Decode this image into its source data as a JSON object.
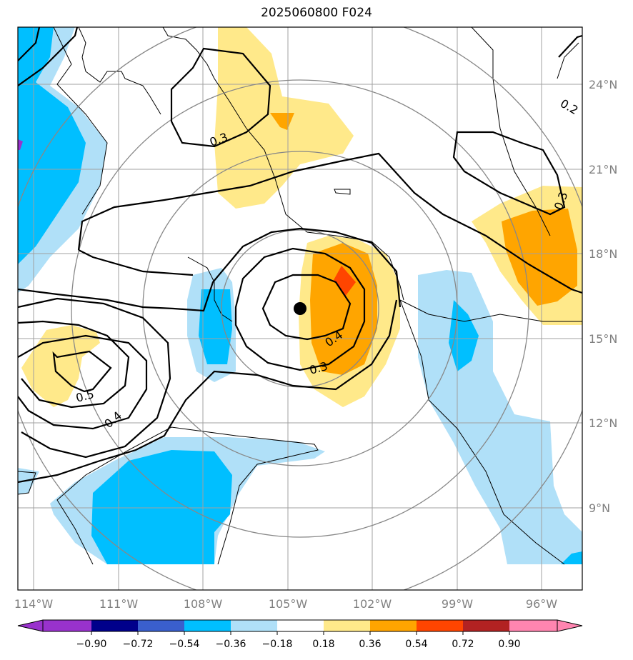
{
  "map": {
    "title": "2025060800 F024",
    "lon_labels": [
      "114°W",
      "111°W",
      "108°W",
      "105°W",
      "102°W",
      "99°W",
      "96°W"
    ],
    "lat_labels": [
      "24°N",
      "21°N",
      "18°N",
      "15°N",
      "12°N",
      "9°N"
    ],
    "contour_labels": [
      "0.3",
      "0.2",
      "0.3",
      "0.4",
      "0.3",
      "0.5",
      "0.4"
    ],
    "storm_center": {
      "lon": -104.6,
      "lat": 16.1
    }
  },
  "colorbar": {
    "ticks": [
      "−0.90",
      "−0.72",
      "−0.54",
      "−0.36",
      "−0.18",
      "0.18",
      "0.36",
      "0.54",
      "0.72",
      "0.90"
    ],
    "colors": [
      "#9932cc",
      "#00008b",
      "#3a5fcd",
      "#00bfff",
      "#b0e0f8",
      "#ffffff",
      "#ffe98a",
      "#ffa500",
      "#ff4500",
      "#b22222",
      "#ff85b0"
    ]
  }
}
